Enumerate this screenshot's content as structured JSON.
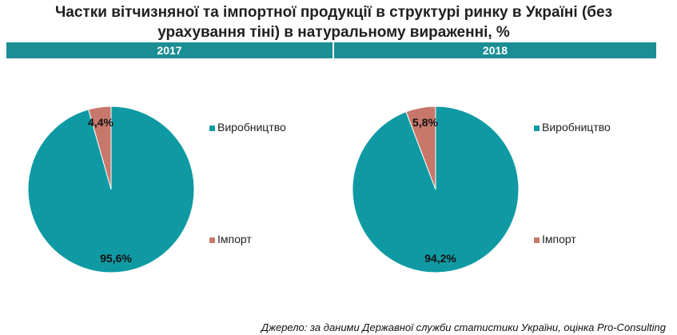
{
  "title_line1": "Частки вітчизняної та імпортної продукції в структурі  ринку в Україні (без",
  "title_line2": "урахування тіні) в натуральному вираженні, %",
  "source": "Джерело: за даними Державної служби статистики України, оцінка Pro-Consulting",
  "colors": {
    "production": "#0f9aa3",
    "import": "#c7786b",
    "bar": "#1b8e94"
  },
  "chart_data": [
    {
      "type": "pie",
      "title": "2017",
      "categories": [
        "Виробництво",
        "Імпорт"
      ],
      "values": [
        95.6,
        4.4
      ],
      "labels": [
        "95,6%",
        "4,4%"
      ],
      "legend": "right"
    },
    {
      "type": "pie",
      "title": "2018",
      "categories": [
        "Виробництво",
        "Імпорт"
      ],
      "values": [
        94.2,
        5.8
      ],
      "labels": [
        "94,2%",
        "5,8%"
      ],
      "legend": "right"
    }
  ]
}
